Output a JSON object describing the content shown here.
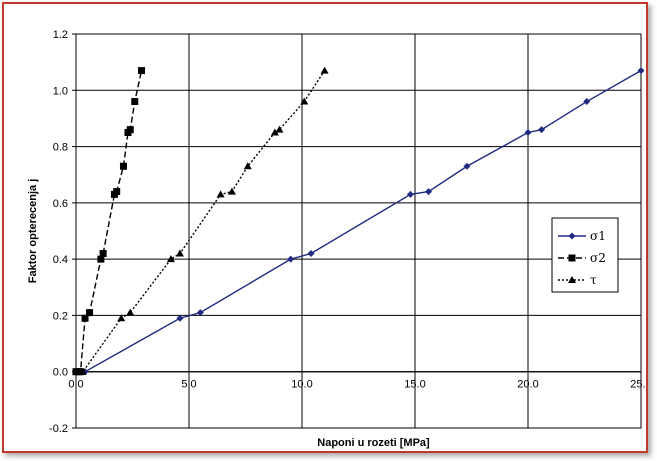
{
  "chart_data": {
    "type": "scatter",
    "title": "",
    "xlabel": "Naponi u rozeti [MPa]",
    "ylabel": "Faktor opterecenja j",
    "xlim": [
      0,
      25
    ],
    "ylim": [
      -0.2,
      1.2
    ],
    "x_ticks": [
      0,
      5,
      10,
      15,
      20,
      25
    ],
    "x_tick_labels": [
      "0.0",
      "5.0",
      "10.0",
      "15.0",
      "20.0",
      "25.0"
    ],
    "y_ticks": [
      -0.2,
      0,
      0.2,
      0.4,
      0.6,
      0.8,
      1.0,
      1.2
    ],
    "y_tick_labels": [
      "-0.2",
      "0.0",
      "0.2",
      "0.4",
      "0.6",
      "0.8",
      "1.0",
      "1.2"
    ],
    "grid": true,
    "legend_position": "right",
    "series": [
      {
        "name": "σ1",
        "marker": "diamond",
        "line": "solid",
        "color": "#1f2a80",
        "x": [
          0,
          0.2,
          0.4,
          4.6,
          5.5,
          9.5,
          10.4,
          14.8,
          15.6,
          17.3,
          20.0,
          20.6,
          22.6,
          25.0
        ],
        "y": [
          0,
          0,
          0,
          0.19,
          0.21,
          0.4,
          0.42,
          0.63,
          0.64,
          0.73,
          0.85,
          0.86,
          0.96,
          1.07
        ]
      },
      {
        "name": "σ2",
        "marker": "square",
        "line": "dashed",
        "color": "#000000",
        "x": [
          0,
          0.1,
          0.2,
          0.4,
          0.6,
          1.1,
          1.2,
          1.7,
          1.8,
          2.1,
          2.3,
          2.4,
          2.6,
          2.9
        ],
        "y": [
          0,
          0,
          0,
          0.19,
          0.21,
          0.4,
          0.42,
          0.63,
          0.64,
          0.73,
          0.85,
          0.86,
          0.96,
          1.07
        ]
      },
      {
        "name": "τ",
        "marker": "triangle",
        "line": "dotted",
        "color": "#000000",
        "x": [
          0,
          0.1,
          0.3,
          2.0,
          2.4,
          4.2,
          4.6,
          6.4,
          6.9,
          7.6,
          8.8,
          9.0,
          10.1,
          11.0
        ],
        "y": [
          0,
          0,
          0,
          0.19,
          0.21,
          0.4,
          0.42,
          0.63,
          0.64,
          0.73,
          0.85,
          0.86,
          0.96,
          1.07
        ]
      }
    ]
  }
}
